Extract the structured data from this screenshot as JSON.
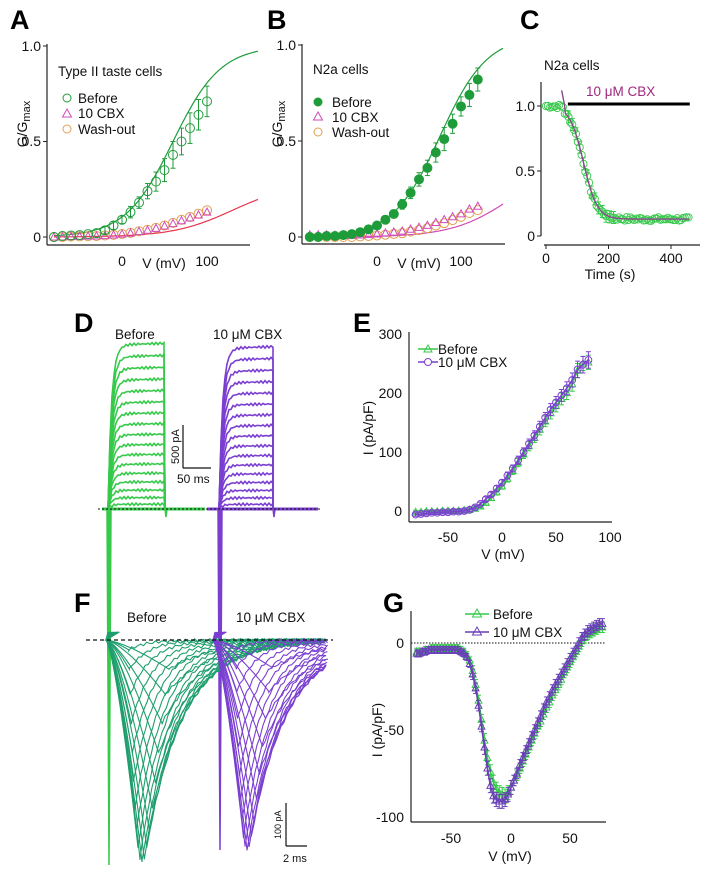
{
  "figure": {
    "panel_letters": [
      "A",
      "B",
      "C",
      "D",
      "E",
      "F",
      "G"
    ]
  },
  "colors": {
    "green_dark": "#1e9c3a",
    "green_light": "#36c94a",
    "magenta": "#d24bb8",
    "red_fit": "#e8344c",
    "orange": "#e0a050",
    "purple": "#7b3fd0",
    "teal_green": "#1f9e6e",
    "cbx_label": "#a0287c"
  },
  "chart_data": [
    {
      "panel": "A",
      "type": "scatter",
      "annotation": "Type II taste cells",
      "ylabel": "G/Gmax",
      "xlabel": "V (mV)",
      "xticks": [
        "0",
        "100"
      ],
      "yticks": [
        "0",
        "0.5",
        "1.0"
      ],
      "xlim": [
        -90,
        160
      ],
      "ylim": [
        0,
        1.0
      ],
      "legend": [
        "Before",
        "10 CBX",
        "Wash-out"
      ],
      "x": [
        -80,
        -70,
        -60,
        -50,
        -40,
        -30,
        -20,
        -10,
        0,
        10,
        20,
        30,
        40,
        50,
        60,
        70,
        80,
        90,
        100
      ],
      "series": [
        {
          "name": "Before",
          "marker": "open-circle",
          "values": [
            0.0,
            0.005,
            0.008,
            0.01,
            0.015,
            0.02,
            0.035,
            0.06,
            0.09,
            0.13,
            0.18,
            0.24,
            0.29,
            0.35,
            0.43,
            0.5,
            0.57,
            0.64,
            0.71
          ],
          "errors": [
            0.01,
            0.01,
            0.01,
            0.01,
            0.01,
            0.01,
            0.02,
            0.02,
            0.02,
            0.03,
            0.03,
            0.04,
            0.05,
            0.06,
            0.07,
            0.07,
            0.08,
            0.08,
            0.08
          ]
        },
        {
          "name": "10 CBX",
          "marker": "open-triangle",
          "values": [
            0.0,
            0.0,
            0.002,
            0.003,
            0.004,
            0.005,
            0.007,
            0.01,
            0.015,
            0.02,
            0.028,
            0.035,
            0.045,
            0.057,
            0.07,
            0.085,
            0.1,
            0.115,
            0.13
          ],
          "errors": [
            0.005,
            0.005,
            0.005,
            0.005,
            0.005,
            0.005,
            0.005,
            0.005,
            0.005,
            0.005,
            0.006,
            0.006,
            0.007,
            0.007,
            0.008,
            0.008,
            0.01,
            0.01,
            0.01
          ]
        },
        {
          "name": "Wash-out",
          "marker": "open-circle",
          "values": [
            0.0,
            0.0,
            0.002,
            0.003,
            0.004,
            0.005,
            0.008,
            0.011,
            0.016,
            0.022,
            0.03,
            0.038,
            0.048,
            0.06,
            0.074,
            0.09,
            0.105,
            0.122,
            0.14
          ],
          "errors": [
            0.005,
            0.005,
            0.005,
            0.005,
            0.005,
            0.005,
            0.005,
            0.005,
            0.005,
            0.005,
            0.006,
            0.006,
            0.007,
            0.007,
            0.008,
            0.008,
            0.01,
            0.01,
            0.01
          ]
        }
      ],
      "fits": [
        {
          "name": "Before fit",
          "vhalf": 60,
          "k": 28,
          "gmax": 1.0
        },
        {
          "name": "CBX fit",
          "vhalf": 130,
          "k": 35,
          "gmax": 0.28
        }
      ]
    },
    {
      "panel": "B",
      "type": "scatter",
      "annotation": "N2a cells",
      "ylabel": "G/Gmax",
      "xlabel": "V (mV)",
      "xticks": [
        "0",
        "100"
      ],
      "yticks": [
        "0",
        "0.5",
        "1.0"
      ],
      "xlim": [
        -90,
        150
      ],
      "ylim": [
        0,
        1.0
      ],
      "legend": [
        "Before",
        "10 CBX",
        "Wash-out"
      ],
      "x": [
        -80,
        -70,
        -60,
        -50,
        -40,
        -30,
        -20,
        -10,
        0,
        10,
        20,
        30,
        40,
        50,
        60,
        70,
        80,
        90,
        100,
        110,
        120
      ],
      "series": [
        {
          "name": "Before",
          "marker": "filled-circle",
          "values": [
            0.0,
            0.0,
            0.005,
            0.005,
            0.01,
            0.015,
            0.025,
            0.04,
            0.06,
            0.09,
            0.12,
            0.17,
            0.23,
            0.3,
            0.36,
            0.44,
            0.51,
            0.59,
            0.68,
            0.74,
            0.82
          ],
          "errors": [
            0.01,
            0.01,
            0.01,
            0.01,
            0.01,
            0.01,
            0.01,
            0.01,
            0.015,
            0.02,
            0.02,
            0.025,
            0.03,
            0.035,
            0.04,
            0.05,
            0.06,
            0.05,
            0.05,
            0.06,
            0.06
          ]
        },
        {
          "name": "10 CBX",
          "marker": "open-triangle",
          "values": [
            0.01,
            0.01,
            0.01,
            0.008,
            0.008,
            0.008,
            0.01,
            0.012,
            0.015,
            0.02,
            0.025,
            0.03,
            0.04,
            0.05,
            0.06,
            0.075,
            0.09,
            0.105,
            0.12,
            0.145,
            0.16
          ],
          "errors": [
            0.005,
            0.005,
            0.005,
            0.005,
            0.005,
            0.005,
            0.005,
            0.005,
            0.005,
            0.005,
            0.006,
            0.006,
            0.006,
            0.007,
            0.007,
            0.008,
            0.008,
            0.009,
            0.01,
            0.01,
            0.01
          ]
        },
        {
          "name": "Wash-out",
          "marker": "open-circle",
          "values": [
            0.0,
            0.0,
            0.0,
            0.0,
            0.0,
            0.0,
            0.003,
            0.005,
            0.008,
            0.012,
            0.016,
            0.02,
            0.028,
            0.036,
            0.046,
            0.06,
            0.072,
            0.088,
            0.105,
            0.125,
            0.14
          ],
          "errors": [
            0.005,
            0.005,
            0.005,
            0.005,
            0.005,
            0.005,
            0.005,
            0.005,
            0.005,
            0.005,
            0.005,
            0.005,
            0.006,
            0.006,
            0.006,
            0.007,
            0.007,
            0.008,
            0.008,
            0.01,
            0.01
          ]
        }
      ],
      "fits": [
        {
          "name": "Before fit",
          "vhalf": 75,
          "k": 28,
          "gmax": 1.05
        },
        {
          "name": "CBX fit",
          "vhalf": 160,
          "k": 35,
          "gmax": 0.4
        }
      ]
    },
    {
      "panel": "C",
      "type": "scatter",
      "annotation": "N2a cells",
      "bar_label": "10 μM CBX",
      "bar_range_s": [
        70,
        460
      ],
      "xlabel": "Time (s)",
      "ylabel": "",
      "xticks": [
        "0",
        "200",
        "400"
      ],
      "yticks": [
        "0",
        "0.5",
        "1.0"
      ],
      "xlim": [
        -15,
        490
      ],
      "ylim": [
        0,
        1.2
      ],
      "decay": {
        "start_s": 60,
        "baseline": 1.0,
        "plateau": 0.13,
        "half_time_s": 120,
        "slope": 22
      },
      "time_range_s": [
        0,
        460
      ],
      "sample_interval_s": 6
    },
    {
      "panel": "D",
      "type": "line",
      "conditions": [
        "Before",
        "10 μM CBX"
      ],
      "scale_bar": {
        "current": "500 pA",
        "time": "50 ms"
      },
      "n_steps": 17,
      "peak_fraction": {
        "Before": 1.0,
        "10 μM CBX": 0.98
      }
    },
    {
      "panel": "E",
      "type": "line",
      "xlabel": "V (mV)",
      "ylabel": "I (pA/pF)",
      "xticks": [
        "-50",
        "0",
        "50",
        "100"
      ],
      "yticks": [
        "0",
        "100",
        "200",
        "300"
      ],
      "xlim": [
        -85,
        100
      ],
      "ylim": [
        -10,
        300
      ],
      "legend": [
        "Before",
        "10 μM CBX"
      ],
      "x": [
        -80,
        -75,
        -70,
        -65,
        -60,
        -55,
        -50,
        -45,
        -40,
        -35,
        -30,
        -25,
        -20,
        -15,
        -10,
        -5,
        0,
        5,
        10,
        15,
        20,
        25,
        30,
        35,
        40,
        45,
        50,
        55,
        60,
        65,
        70,
        75,
        80
      ],
      "series": [
        {
          "name": "Before",
          "marker": "open-triangle",
          "values": [
            -2,
            -2,
            -1,
            -1,
            -1,
            0,
            0,
            0,
            0,
            1,
            2,
            4,
            8,
            14,
            22,
            32,
            42,
            55,
            68,
            82,
            96,
            110,
            124,
            138,
            152,
            166,
            178,
            190,
            200,
            215,
            238,
            250,
            252
          ],
          "errors": [
            3,
            3,
            3,
            3,
            3,
            3,
            3,
            3,
            3,
            3,
            3,
            3,
            3,
            4,
            4,
            5,
            5,
            6,
            6,
            7,
            7,
            8,
            8,
            9,
            9,
            10,
            10,
            10,
            11,
            12,
            12,
            12,
            12
          ]
        },
        {
          "name": "10 μM CBX",
          "marker": "open-circle",
          "values": [
            -6,
            -5,
            -4,
            -3,
            -3,
            -2,
            -2,
            -1,
            -1,
            0,
            2,
            6,
            12,
            20,
            28,
            38,
            48,
            60,
            72,
            86,
            100,
            114,
            128,
            143,
            158,
            172,
            184,
            196,
            208,
            222,
            240,
            248,
            256
          ],
          "errors": [
            3,
            3,
            3,
            3,
            3,
            3,
            3,
            3,
            3,
            3,
            3,
            3,
            3,
            4,
            4,
            5,
            5,
            6,
            6,
            7,
            7,
            8,
            8,
            9,
            9,
            10,
            10,
            10,
            11,
            12,
            14,
            14,
            14
          ]
        }
      ]
    },
    {
      "panel": "F",
      "type": "line",
      "conditions": [
        "Before",
        "10 μM CBX"
      ],
      "scale_bar": {
        "current": "100 pA",
        "time": "2 ms"
      },
      "n_traces": 20,
      "peak_fraction": {
        "Before": 1.0,
        "10 μM CBX": 0.95
      }
    },
    {
      "panel": "G",
      "type": "line",
      "xlabel": "V (mV)",
      "ylabel": "I (pA/pF)",
      "xticks": [
        "-50",
        "0",
        "50"
      ],
      "yticks": [
        "-100",
        "-50",
        "0"
      ],
      "xlim": [
        -85,
        80
      ],
      "ylim": [
        -102,
        14
      ],
      "legend": [
        "Before",
        "10 μM CBX"
      ],
      "x": [
        -80,
        -77.5,
        -75,
        -72.5,
        -70,
        -67.5,
        -65,
        -62.5,
        -60,
        -57.5,
        -55,
        -52.5,
        -50,
        -47.5,
        -45,
        -42.5,
        -40,
        -37.5,
        -35,
        -32.5,
        -30,
        -27.5,
        -25,
        -22.5,
        -20,
        -17.5,
        -15,
        -12.5,
        -10,
        -7.5,
        -5,
        -2.5,
        0,
        2.5,
        5,
        7.5,
        10,
        12.5,
        15,
        17.5,
        20,
        22.5,
        25,
        27.5,
        30,
        32.5,
        35,
        37.5,
        40,
        42.5,
        45,
        47.5,
        50,
        52.5,
        55,
        57.5,
        60,
        62.5,
        65,
        67.5,
        70,
        72.5,
        75,
        77.5
      ],
      "series": [
        {
          "name": "Before",
          "marker": "open-triangle",
          "values": [
            -5,
            -5,
            -5,
            -4,
            -4,
            -3,
            -3,
            -3,
            -3,
            -3,
            -3,
            -3,
            -3,
            -3,
            -3,
            -4,
            -5,
            -7,
            -10,
            -16,
            -24,
            -33,
            -44,
            -56,
            -66,
            -74,
            -80,
            -84,
            -86,
            -87,
            -88,
            -86,
            -83,
            -79,
            -76,
            -72,
            -68,
            -64,
            -60,
            -56,
            -52,
            -48,
            -45,
            -41,
            -37,
            -34,
            -30,
            -27,
            -24,
            -21,
            -17,
            -14,
            -11,
            -8,
            -5,
            -2,
            1,
            3,
            5,
            6,
            7,
            8,
            9,
            9
          ],
          "errors": [
            2,
            2,
            2,
            2,
            2,
            2,
            2,
            2,
            2,
            2,
            2,
            2,
            2,
            2,
            2,
            2,
            2,
            2,
            2,
            3,
            3,
            3,
            3,
            4,
            4,
            4,
            4,
            4,
            4,
            4,
            4,
            4,
            4,
            3,
            3,
            3,
            3,
            3,
            3,
            3,
            3,
            3,
            3,
            3,
            3,
            3,
            3,
            3,
            3,
            3,
            3,
            3,
            3,
            3,
            3,
            3,
            3,
            3,
            3,
            3,
            3,
            3,
            3,
            3
          ]
        },
        {
          "name": "10 μM CBX",
          "marker": "open-triangle",
          "values": [
            -6,
            -6,
            -5,
            -5,
            -4,
            -4,
            -4,
            -4,
            -4,
            -4,
            -4,
            -4,
            -4,
            -4,
            -4,
            -5,
            -6,
            -8,
            -12,
            -18,
            -26,
            -36,
            -48,
            -60,
            -72,
            -82,
            -88,
            -90,
            -91,
            -91,
            -90,
            -87,
            -83,
            -79,
            -75,
            -70,
            -66,
            -62,
            -58,
            -54,
            -50,
            -46,
            -42,
            -38,
            -34,
            -31,
            -27,
            -24,
            -21,
            -18,
            -15,
            -12,
            -9,
            -6,
            -3,
            0,
            3,
            5,
            7,
            8,
            9,
            10,
            11,
            11
          ],
          "errors": [
            2,
            2,
            2,
            2,
            2,
            2,
            2,
            2,
            2,
            2,
            2,
            2,
            2,
            2,
            2,
            2,
            2,
            2,
            2,
            3,
            3,
            3,
            3,
            4,
            4,
            4,
            4,
            4,
            4,
            4,
            4,
            4,
            4,
            3,
            3,
            3,
            3,
            3,
            3,
            3,
            3,
            3,
            3,
            3,
            3,
            3,
            3,
            3,
            3,
            3,
            3,
            3,
            3,
            3,
            3,
            3,
            3,
            3,
            3,
            3,
            3,
            3,
            3,
            3
          ]
        }
      ]
    }
  ]
}
